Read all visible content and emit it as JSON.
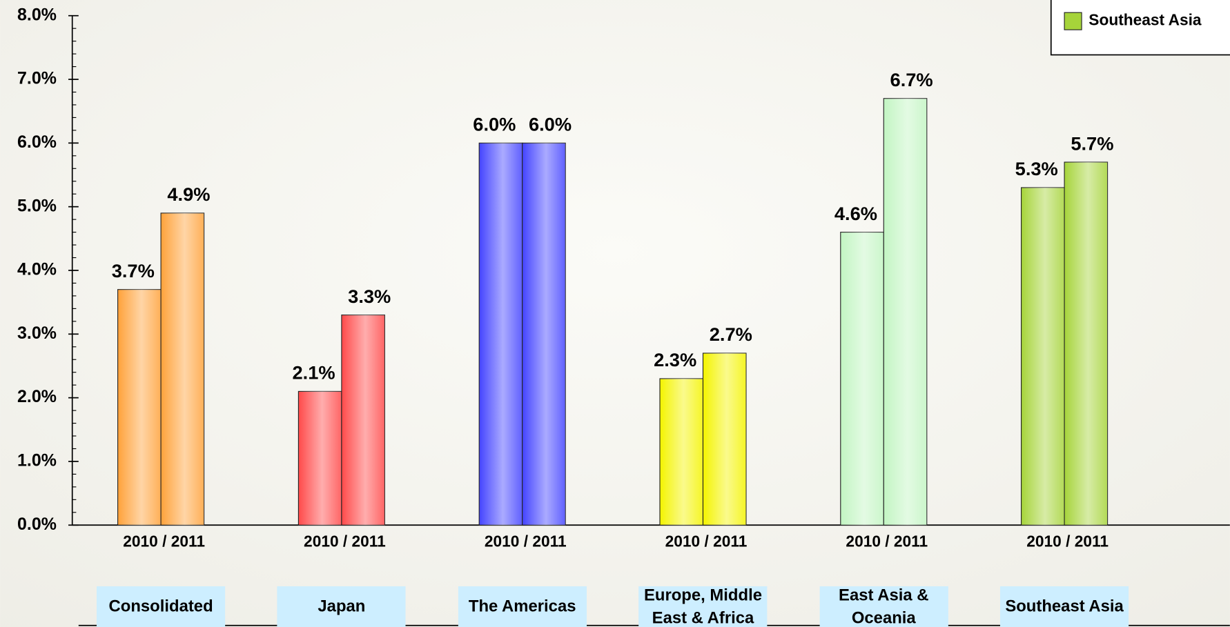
{
  "chart_data": {
    "type": "bar",
    "groups": [
      {
        "name": "Consolidated",
        "color": "#ffa23a",
        "values": [
          3.7,
          4.9
        ],
        "value_labels": [
          "3.7%",
          "4.9%"
        ]
      },
      {
        "name": "Japan",
        "color": "#ff4a4a",
        "values": [
          2.1,
          3.3
        ],
        "value_labels": [
          "2.1%",
          "3.3%"
        ]
      },
      {
        "name": "The Americas",
        "color": "#4444ff",
        "values": [
          6.0,
          6.0
        ],
        "value_labels": [
          "6.0%",
          "6.0%"
        ]
      },
      {
        "name": "Europe, Middle East & Africa",
        "color": "#f4f400",
        "values": [
          2.3,
          2.7
        ],
        "value_labels": [
          "2.3%",
          "2.7%"
        ]
      },
      {
        "name": "East Asia & Oceania",
        "color": "#c2f5c2",
        "values": [
          4.6,
          6.7
        ],
        "value_labels": [
          "4.6%",
          "6.7%"
        ]
      },
      {
        "name": "Southeast Asia",
        "color": "#a6d43a",
        "values": [
          5.3,
          5.7
        ],
        "value_labels": [
          "5.3%",
          "5.7%"
        ]
      }
    ],
    "bar_label": "2010 / 2011",
    "legend_groups": [
      5
    ],
    "ylim": [
      0,
      8
    ],
    "yticks": [
      {
        "value": 0,
        "label": "0.0%"
      },
      {
        "value": 1,
        "label": "1.0%"
      },
      {
        "value": 2,
        "label": "2.0%"
      },
      {
        "value": 3,
        "label": "3.0%"
      },
      {
        "value": 4,
        "label": "4.0%"
      },
      {
        "value": 5,
        "label": "5.0%"
      },
      {
        "value": 6,
        "label": "6.0%"
      },
      {
        "value": 7,
        "label": "7.0%"
      },
      {
        "value": 8,
        "label": "8.0%"
      }
    ],
    "yminor_step": 0.2,
    "legend": "top-right"
  }
}
